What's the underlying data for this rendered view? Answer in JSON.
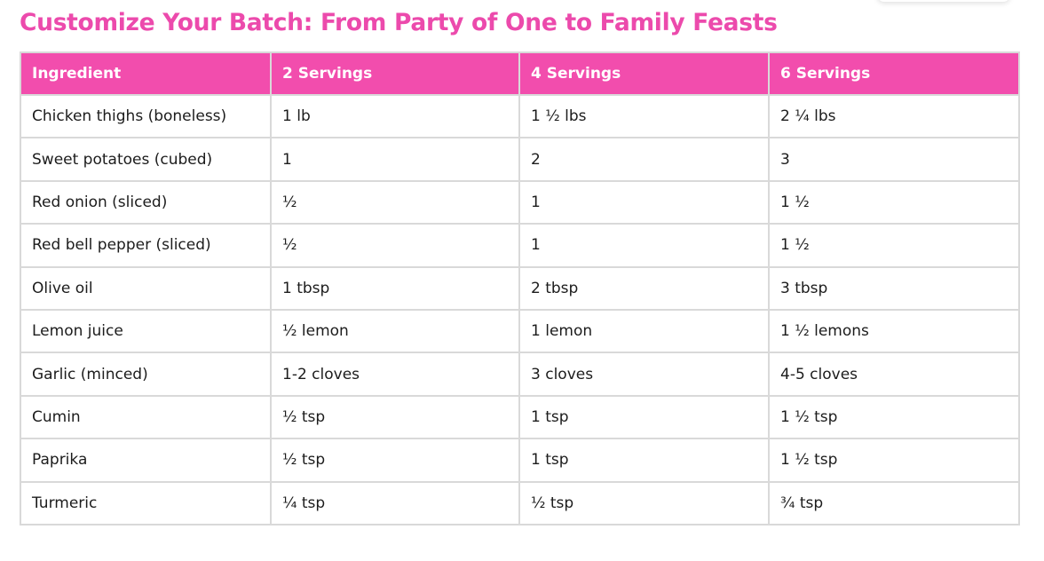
{
  "page": {
    "title": "Customize Your Batch: From Party of One to Family Feasts"
  },
  "colors": {
    "accent": "#ec4aac",
    "header_bg": "#f24dad",
    "header_text": "#ffffff",
    "border": "#d9d9d9",
    "body_text": "#1c1c1c"
  },
  "table": {
    "headers": [
      "Ingredient",
      "2 Servings",
      "4 Servings",
      "6 Servings"
    ],
    "rows": [
      [
        "Chicken thighs (boneless)",
        "1 lb",
        "1 ½ lbs",
        "2 ¼ lbs"
      ],
      [
        "Sweet potatoes (cubed)",
        "1",
        "2",
        "3"
      ],
      [
        "Red onion (sliced)",
        "½",
        "1",
        "1 ½"
      ],
      [
        "Red bell pepper (sliced)",
        "½",
        "1",
        "1 ½"
      ],
      [
        "Olive oil",
        "1 tbsp",
        "2 tbsp",
        "3 tbsp"
      ],
      [
        "Lemon juice",
        "½ lemon",
        "1 lemon",
        "1 ½ lemons"
      ],
      [
        "Garlic (minced)",
        "1-2 cloves",
        "3 cloves",
        "4-5 cloves"
      ],
      [
        "Cumin",
        "½ tsp",
        "1 tsp",
        "1 ½ tsp"
      ],
      [
        "Paprika",
        "½ tsp",
        "1 tsp",
        "1 ½ tsp"
      ],
      [
        "Turmeric",
        "¼ tsp",
        "½ tsp",
        "¾ tsp"
      ]
    ]
  }
}
